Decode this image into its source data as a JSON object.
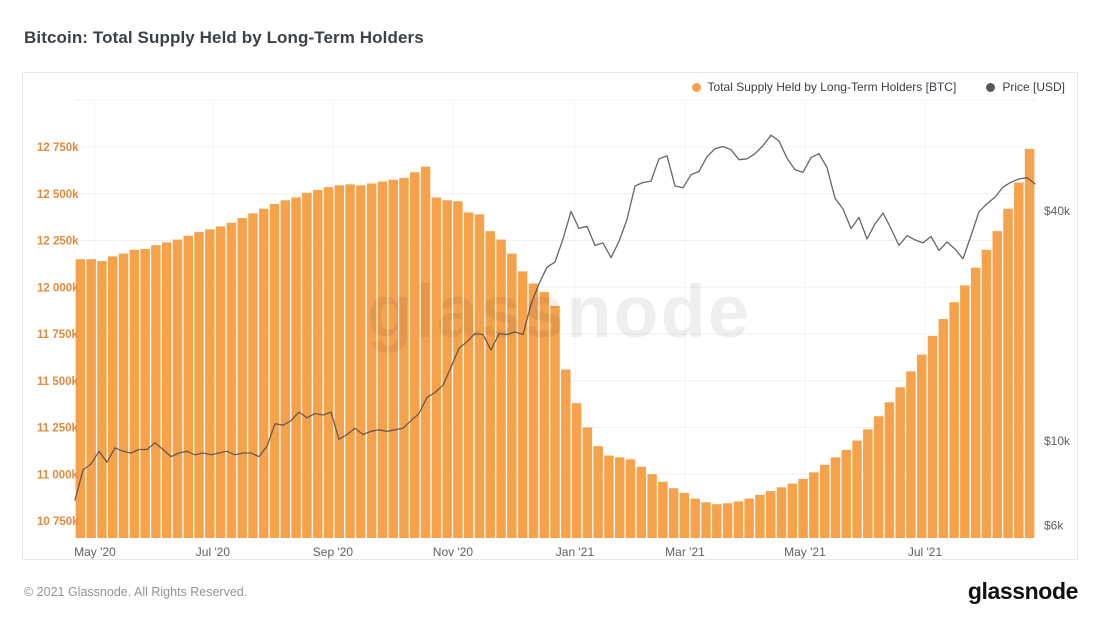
{
  "page": {
    "title": "Bitcoin: Total Supply Held by Long-Term Holders",
    "watermark": "glassnode",
    "footer_copyright": "© 2021 Glassnode. All Rights Reserved.",
    "brand_logo": "glassnode"
  },
  "legend": [
    {
      "label": "Total Supply Held by Long-Term Holders [BTC]",
      "color": "#F6A24B"
    },
    {
      "label": "Price [USD]",
      "color": "#55585E"
    }
  ],
  "colors": {
    "bar": "#F6A24B",
    "price_line": "#4B4B4E",
    "grid": "#F0F0F0",
    "grid_vertical": "#F4F4F4",
    "supply_axis_text": "#E08A3E",
    "price_axis_text": "#5B6066",
    "x_axis_text": "#5B6066",
    "watermark": "#000000"
  },
  "chart_data": {
    "type": "bar+line",
    "title": "Bitcoin: Total Supply Held by Long-Term Holders",
    "x_axis": {
      "ticks": [
        {
          "label": "May '20",
          "pos": 0.0208
        },
        {
          "label": "Jul '20",
          "pos": 0.1437
        },
        {
          "label": "Sep '20",
          "pos": 0.2687
        },
        {
          "label": "Nov '20",
          "pos": 0.3937
        },
        {
          "label": "Jan '21",
          "pos": 0.5208
        },
        {
          "label": "Mar '21",
          "pos": 0.6354
        },
        {
          "label": "May '21",
          "pos": 0.7604
        },
        {
          "label": "Jul '21",
          "pos": 0.8854
        }
      ],
      "range": [
        "2020-04-20",
        "2021-08-25"
      ]
    },
    "supply_axis": {
      "side": "left",
      "unit": "BTC",
      "max": 12750,
      "min": 10750,
      "tick_step": 250,
      "tick_labels": [
        "12 750k",
        "12 500k",
        "12 250k",
        "12 000k",
        "11 750k",
        "11 500k",
        "11 250k",
        "11 000k",
        "10 750k"
      ]
    },
    "price_axis": {
      "side": "right",
      "unit": "USD",
      "scale": "log",
      "ticks": [
        {
          "label": "$40k",
          "value": 40
        },
        {
          "label": "$10k",
          "value": 10
        },
        {
          "label": "$6k",
          "value": 6
        }
      ]
    },
    "series": [
      {
        "name": "Total Supply Held by Long-Term Holders [BTC]",
        "type": "bar",
        "unit": "k BTC",
        "values": [
          12150,
          12150,
          12140,
          12165,
          12180,
          12200,
          12205,
          12225,
          12240,
          12255,
          12275,
          12295,
          12310,
          12325,
          12345,
          12370,
          12395,
          12420,
          12445,
          12465,
          12480,
          12505,
          12520,
          12535,
          12545,
          12550,
          12545,
          12555,
          12565,
          12575,
          12585,
          12615,
          12645,
          12480,
          12465,
          12460,
          12400,
          12390,
          12300,
          12255,
          12180,
          12085,
          12020,
          11975,
          11900,
          11560,
          11380,
          11250,
          11150,
          11100,
          11090,
          11080,
          11040,
          11000,
          10960,
          10925,
          10900,
          10870,
          10850,
          10840,
          10845,
          10855,
          10870,
          10890,
          10910,
          10930,
          10950,
          10975,
          11010,
          11050,
          11090,
          11130,
          11180,
          11240,
          11310,
          11385,
          11465,
          11550,
          11640,
          11740,
          11830,
          11920,
          12010,
          12105,
          12200,
          12300,
          12420,
          12560,
          12740
        ]
      },
      {
        "name": "Price [USD]",
        "type": "line",
        "unit": "k USD",
        "values": [
          7.0,
          8.4,
          8.7,
          9.4,
          8.8,
          9.6,
          9.4,
          9.3,
          9.5,
          9.5,
          9.9,
          9.5,
          9.1,
          9.3,
          9.4,
          9.2,
          9.3,
          9.2,
          9.3,
          9.4,
          9.2,
          9.3,
          9.3,
          9.1,
          9.7,
          11.1,
          11.0,
          11.3,
          11.9,
          11.5,
          11.8,
          11.7,
          11.9,
          10.1,
          10.4,
          10.8,
          10.4,
          10.6,
          10.7,
          10.6,
          10.7,
          10.8,
          11.3,
          11.8,
          13.0,
          13.4,
          14.0,
          15.6,
          17.5,
          18.2,
          19.1,
          19.0,
          17.3,
          19.1,
          19.0,
          19.3,
          19.0,
          22.8,
          25.8,
          28.5,
          29.4,
          33.8,
          39.9,
          36.0,
          36.5,
          32.5,
          33.0,
          30.2,
          33.3,
          38.0,
          46.5,
          47.5,
          47.9,
          54.8,
          55.8,
          46.5,
          46.0,
          49.8,
          50.8,
          55.5,
          58.2,
          59.0,
          57.9,
          54.5,
          54.8,
          56.5,
          59.3,
          63.2,
          61.0,
          55.0,
          51.3,
          50.5,
          55.2,
          56.5,
          52.0,
          43.2,
          40.5,
          36.0,
          38.5,
          33.8,
          37.0,
          39.5,
          36.0,
          32.5,
          34.5,
          33.6,
          33.0,
          34.3,
          31.5,
          33.2,
          31.8,
          30.0,
          34.5,
          39.8,
          41.8,
          43.5,
          46.2,
          47.6,
          48.5,
          48.9,
          47.1
        ]
      }
    ],
    "legend_position": "top-right",
    "grid": true
  }
}
